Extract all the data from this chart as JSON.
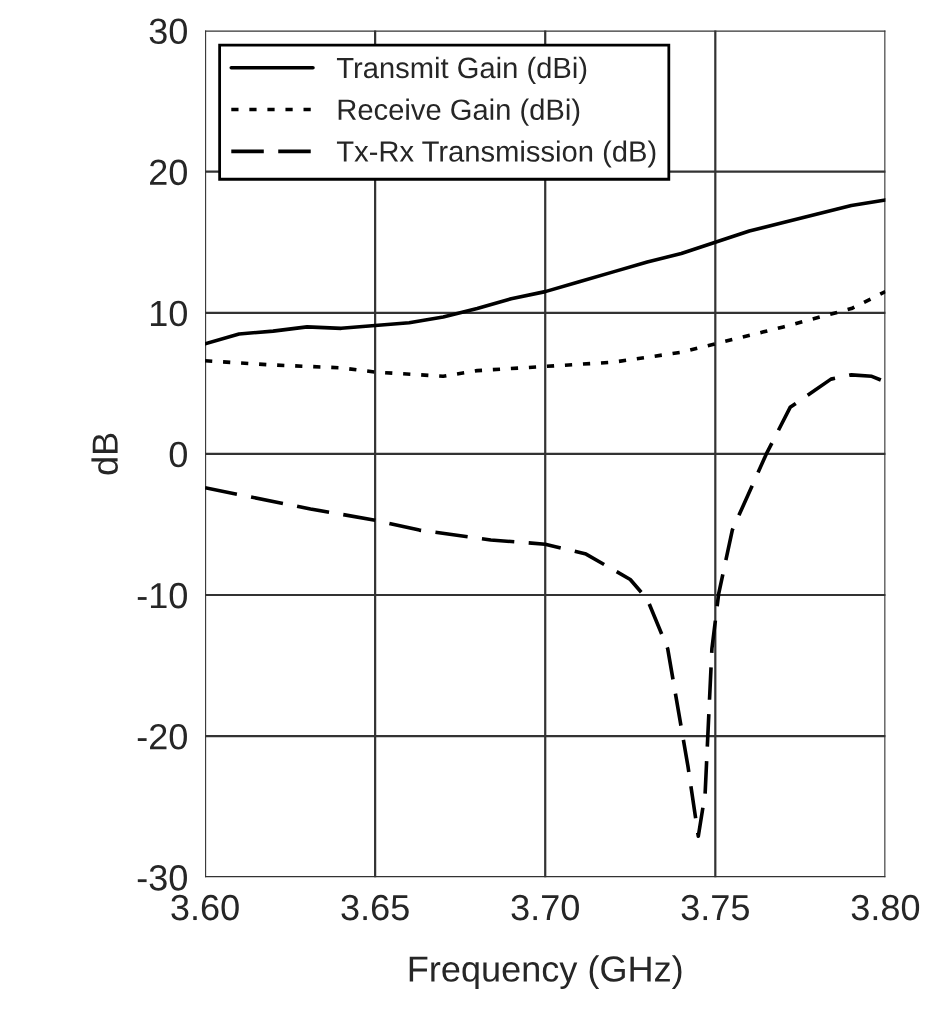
{
  "chart_data": {
    "type": "line",
    "xlabel": "Frequency (GHz)",
    "ylabel": "dB",
    "xlim": [
      3.6,
      3.8
    ],
    "xticks": [
      {
        "value": 3.6,
        "label": "3.60"
      },
      {
        "value": 3.65,
        "label": "3.65"
      },
      {
        "value": 3.7,
        "label": "3.70"
      },
      {
        "value": 3.75,
        "label": "3.75"
      },
      {
        "value": 3.8,
        "label": "3.80"
      }
    ],
    "ylim": [
      -30,
      30
    ],
    "yticks": [
      -30,
      -20,
      -10,
      0,
      10,
      20,
      30
    ],
    "grid": true,
    "legend": "top left",
    "series": [
      {
        "name": "Transmit Gain (dBi)",
        "color": "#000000",
        "line_style": "solid",
        "x": [
          3.6,
          3.61,
          3.62,
          3.63,
          3.64,
          3.65,
          3.66,
          3.67,
          3.68,
          3.69,
          3.7,
          3.71,
          3.72,
          3.73,
          3.74,
          3.75,
          3.76,
          3.77,
          3.78,
          3.79,
          3.8
        ],
        "values": [
          7.8,
          8.5,
          8.7,
          9.0,
          8.9,
          9.1,
          9.3,
          9.7,
          10.3,
          11.0,
          11.5,
          12.2,
          12.9,
          13.6,
          14.2,
          15.0,
          15.8,
          16.4,
          17.0,
          17.6,
          18.0
        ]
      },
      {
        "name": "Receive Gain (dBi)",
        "color": "#000000",
        "line_style": "dotted",
        "x": [
          3.6,
          3.62,
          3.64,
          3.65,
          3.67,
          3.68,
          3.7,
          3.72,
          3.74,
          3.75,
          3.77,
          3.79,
          3.8
        ],
        "values": [
          6.6,
          6.3,
          6.1,
          5.8,
          5.5,
          5.9,
          6.2,
          6.5,
          7.2,
          7.8,
          9.0,
          10.3,
          11.5
        ]
      },
      {
        "name": "Tx-Rx Transmission (dB)",
        "color": "#000000",
        "line_style": "dashed",
        "x": [
          3.6,
          3.631,
          3.65,
          3.663,
          3.684,
          3.7,
          3.712,
          3.725,
          3.73,
          3.736,
          3.742,
          3.745,
          3.747,
          3.749,
          3.751,
          3.755,
          3.765,
          3.772,
          3.784,
          3.79,
          3.796,
          3.8
        ],
        "values": [
          -2.4,
          -3.9,
          -4.7,
          -5.4,
          -6.1,
          -6.4,
          -7.1,
          -8.9,
          -10.3,
          -13.8,
          -22.2,
          -27.1,
          -24.1,
          -13.8,
          -9.9,
          -5.4,
          0,
          3.3,
          5.3,
          5.6,
          5.5,
          5.1
        ]
      }
    ]
  }
}
